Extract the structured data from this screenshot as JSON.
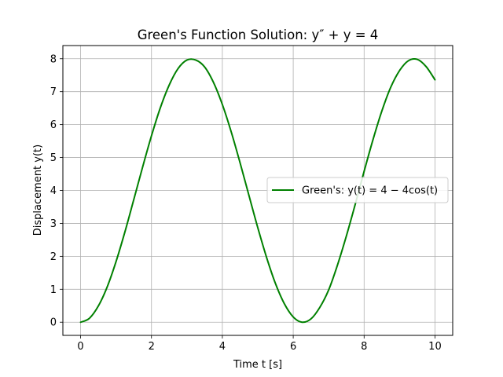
{
  "chart_data": {
    "type": "line",
    "title": "Green's Function Solution: y″ + y = 4",
    "xlabel": "Time t [s]",
    "ylabel": "Displacement y(t)",
    "xlim": [
      -0.5,
      10.5
    ],
    "ylim": [
      -0.4,
      8.4
    ],
    "xticks": [
      0,
      2,
      4,
      6,
      8,
      10
    ],
    "yticks": [
      0,
      1,
      2,
      3,
      4,
      5,
      6,
      7,
      8
    ],
    "grid": true,
    "legend_position": "center-right",
    "series": [
      {
        "name": "Green's: y(t) = 4 − 4cos(t)",
        "color": "#008000",
        "x": [
          0,
          0.25,
          0.5,
          0.75,
          1,
          1.25,
          1.5,
          1.75,
          2,
          2.25,
          2.5,
          2.75,
          3,
          3.25,
          3.5,
          3.75,
          4,
          4.25,
          4.5,
          4.75,
          5,
          5.25,
          5.5,
          5.75,
          6,
          6.25,
          6.5,
          6.75,
          7,
          7.25,
          7.5,
          7.75,
          8,
          8.25,
          8.5,
          8.75,
          9,
          9.25,
          9.5,
          9.75,
          10
        ],
        "y": [
          0,
          0.12,
          0.49,
          1.07,
          1.84,
          2.74,
          3.72,
          4.71,
          5.66,
          6.51,
          7.2,
          7.7,
          7.96,
          7.96,
          7.75,
          7.28,
          6.61,
          5.78,
          4.84,
          3.85,
          2.87,
          1.96,
          1.17,
          0.56,
          0.16,
          0,
          0.1,
          0.45,
          0.98,
          1.74,
          2.62,
          3.58,
          4.58,
          5.54,
          6.41,
          7.13,
          7.64,
          7.94,
          7.98,
          7.76,
          7.36
        ]
      }
    ]
  }
}
